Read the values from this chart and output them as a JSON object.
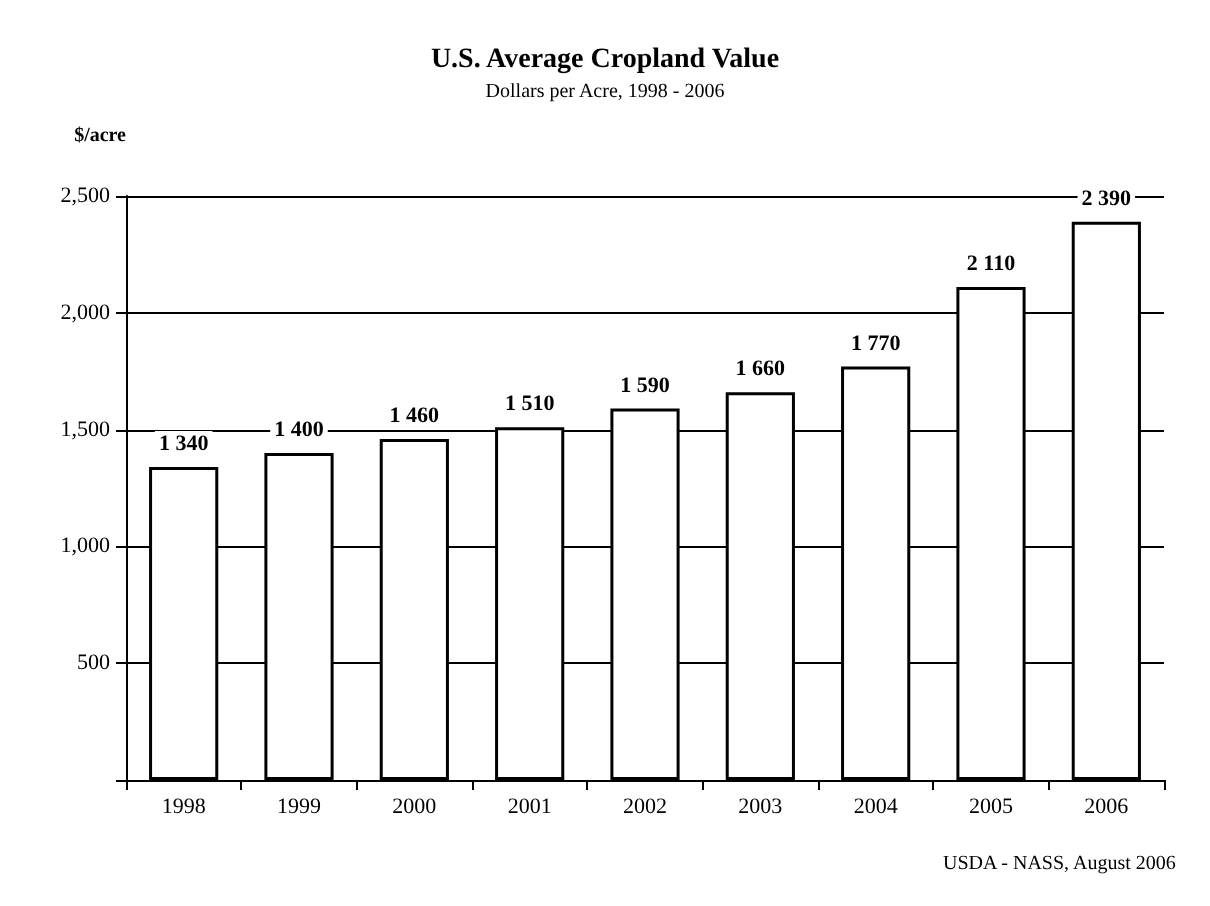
{
  "chart_data": {
    "type": "bar",
    "title": "U.S. Average Cropland Value",
    "subtitle": "Dollars per Acre, 1998 - 2006",
    "ylabel": "$/acre",
    "categories": [
      "1998",
      "1999",
      "2000",
      "2001",
      "2002",
      "2003",
      "2004",
      "2005",
      "2006"
    ],
    "values": [
      1340,
      1400,
      1460,
      1510,
      1590,
      1660,
      1770,
      2110,
      2390
    ],
    "value_labels": [
      "1 340",
      "1 400",
      "1 460",
      "1 510",
      "1 590",
      "1 660",
      "1 770",
      "2 110",
      "2 390"
    ],
    "color": "#ffffff",
    "ylim": [
      0,
      2500
    ],
    "yticks": [
      {
        "value": 0,
        "label": null
      },
      {
        "value": 500,
        "label": "500"
      },
      {
        "value": 1000,
        "label": "1,000"
      },
      {
        "value": 1500,
        "label": "1,500"
      },
      {
        "value": 2000,
        "label": "2,000"
      },
      {
        "value": 2500,
        "label": "2,500"
      }
    ],
    "grid": "y",
    "annotations": [
      "USDA - NASS, August 2006"
    ]
  }
}
